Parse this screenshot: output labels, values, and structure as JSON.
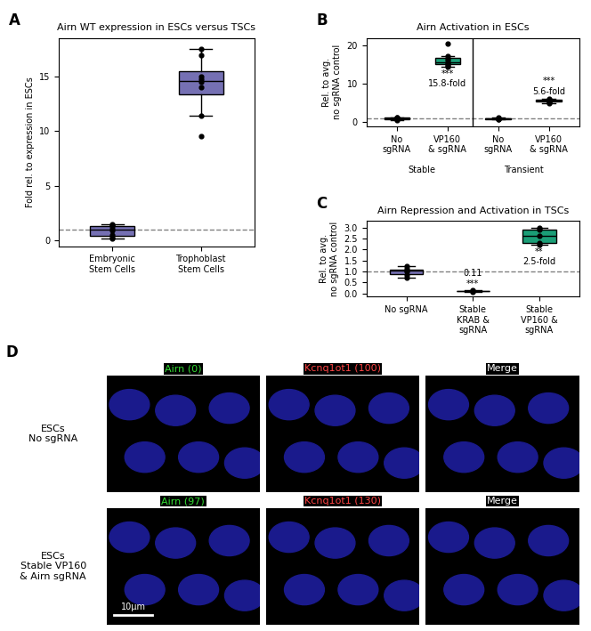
{
  "chart_data": [
    {
      "panel": "A",
      "type": "box",
      "title": "Airn WT expression in ESCs versus TSCs",
      "y_label": "Fold rel. to expression in ESCs",
      "categories": [
        "Embryonic\nStem Cells",
        "Trophoblast\nStem Cells"
      ],
      "values": [
        [
          0.2,
          0.3,
          0.5,
          0.9,
          1.1,
          1.3,
          1.4,
          1.5
        ],
        [
          9.5,
          11.4,
          14.0,
          14.5,
          14.7,
          15.0,
          16.9,
          17.5
        ]
      ],
      "colors": [
        "#7570b3",
        "#7570b3"
      ],
      "reference_line": 1,
      "ylim": [
        -0.5,
        18.5
      ],
      "yticks": [
        0,
        5,
        10,
        15
      ]
    },
    {
      "panel": "B",
      "type": "box",
      "title": "Airn Activation in ESCs",
      "y_label": "Rel. to avg.\nno sgRNA control",
      "categories": [
        "No\nsgRNA",
        "VP160\n& sgRNA",
        "No\nsgRNA",
        "VP160\n& sgRNA"
      ],
      "groups": [
        "Stable",
        "Stable",
        "Transient",
        "Transient"
      ],
      "values": [
        [
          0.6,
          0.8,
          1.0,
          1.1,
          1.2,
          1.3
        ],
        [
          14.5,
          14.8,
          15.2,
          15.5,
          16.0,
          16.5,
          17.3,
          20.6
        ],
        [
          0.8,
          0.9,
          1.0,
          1.1,
          1.2
        ],
        [
          5.0,
          5.3,
          5.5,
          5.7,
          5.9,
          6.2
        ]
      ],
      "colors": [
        "#7570b3",
        "#1b9e77",
        "#7570b3",
        "#1b9e77"
      ],
      "annotations": [
        null,
        "***\n15.8-fold",
        null,
        "***\n5.6-fold"
      ],
      "reference_line": 1,
      "ylim": [
        -1,
        22
      ],
      "yticks": [
        0,
        10,
        20
      ]
    },
    {
      "panel": "C",
      "type": "box",
      "title": "Airn Repression and Activation in TSCs",
      "y_label": "Rel. to avg.\nno sgRNA control",
      "categories": [
        "No sgRNA",
        "Stable\nKRAB &\nsgRNA",
        "Stable\nVP160 &\nsgRNA"
      ],
      "values": [
        [
          0.7,
          0.85,
          1.0,
          1.05,
          1.1,
          1.25
        ],
        [
          0.08,
          0.1,
          0.11,
          0.12,
          0.13
        ],
        [
          2.2,
          2.3,
          2.6,
          2.9,
          3.0
        ]
      ],
      "colors": [
        "#7570b3",
        "#7570b3",
        "#1b9e77"
      ],
      "annotations": [
        null,
        "0.11\n***",
        "**\n2.5-fold"
      ],
      "reference_line": 1,
      "ylim": [
        -0.15,
        3.3
      ],
      "yticks": [
        {
          "value": 0,
          "label": "0.0"
        },
        0.5,
        {
          "value": 1,
          "label": "1.0"
        },
        1.5,
        {
          "value": 2,
          "label": "2.0"
        },
        2.5,
        {
          "value": 3,
          "label": "3.0"
        }
      ]
    }
  ],
  "images": {
    "panel": "D",
    "header_colors": [
      "#33dd33",
      "#ff4444",
      "#ffffff"
    ],
    "rows": [
      {
        "label": "ESCs\nNo sgRNA",
        "headers": [
          "Airn (0)",
          "Kcnq1ot1 (100)",
          "Merge"
        ]
      },
      {
        "label": "ESCs\nStable VP160\n& Airn sgRNA",
        "headers": [
          "Airn (97)",
          "Kcnq1ot1 (130)",
          "Merge"
        ]
      }
    ],
    "scale_bar": "10μm"
  }
}
